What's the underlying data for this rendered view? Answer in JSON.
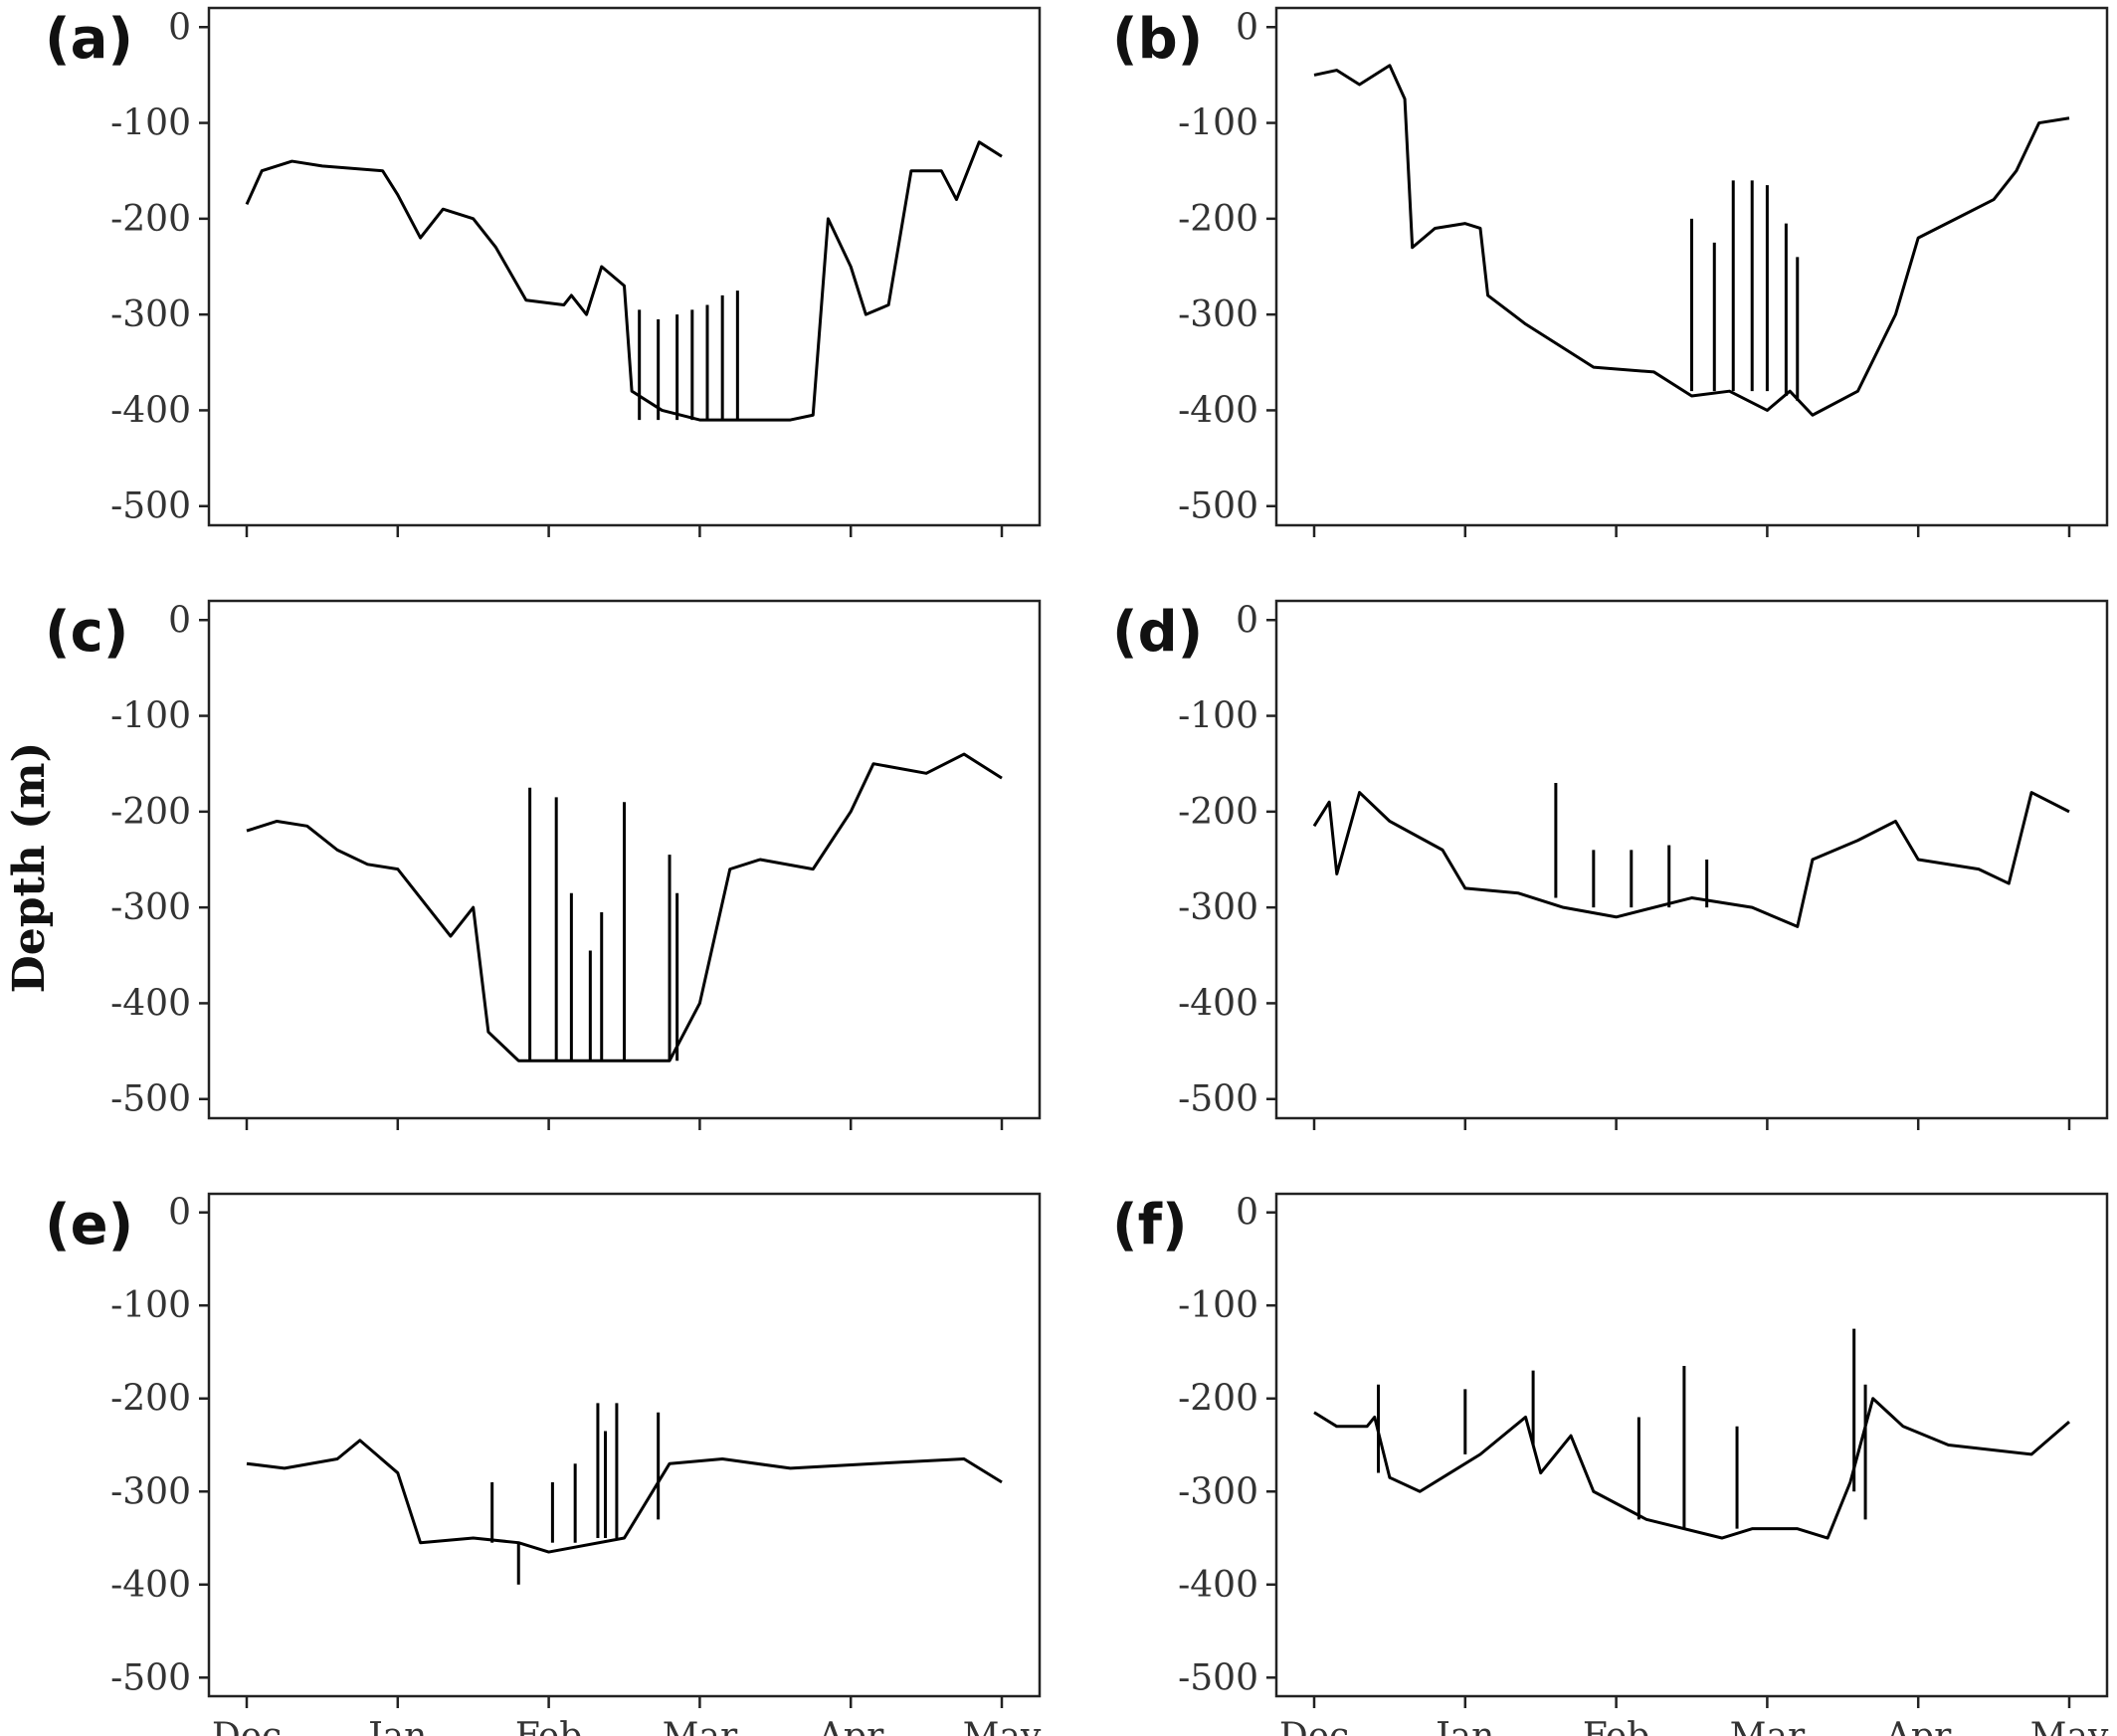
{
  "figure": {
    "y_axis_title": "Depth (m)",
    "line_color": "#000000"
  },
  "chart_data": [
    {
      "panel": "(a)",
      "type": "line",
      "x_ticks": [
        "Dec",
        "Jan",
        "Feb",
        "Mar",
        "Apr",
        "May"
      ],
      "y_ticks": [
        "0",
        "-100",
        "-200",
        "-300",
        "-400",
        "-500"
      ],
      "ylim": [
        -520,
        20
      ],
      "series": [
        {
          "points": [
            [
              "Dec",
              -185
            ],
            [
              "Dec",
              -150
            ],
            [
              "Dec",
              -140
            ],
            [
              "Dec",
              -145
            ],
            [
              "Dec",
              -150
            ],
            [
              "Jan",
              -175
            ],
            [
              "Jan",
              -220
            ],
            [
              "Jan",
              -190
            ],
            [
              "Jan",
              -200
            ],
            [
              "Jan",
              -230
            ],
            [
              "Jan",
              -285
            ],
            [
              "Jan",
              -290
            ],
            [
              "Feb",
              -280
            ],
            [
              "Feb",
              -300
            ],
            [
              "Feb",
              -250
            ],
            [
              "Feb",
              -270
            ],
            [
              "Feb",
              -380
            ],
            [
              "Feb",
              -400
            ],
            [
              "Feb",
              -410
            ],
            [
              "Mar",
              -410
            ],
            [
              "Mar",
              -410
            ],
            [
              "Mar",
              -405
            ],
            [
              "Apr",
              -200
            ],
            [
              "Apr",
              -250
            ],
            [
              "Apr",
              -300
            ],
            [
              "Apr",
              -290
            ],
            [
              "Apr",
              -150
            ],
            [
              "Apr",
              -150
            ],
            [
              "Apr",
              -180
            ],
            [
              "May",
              -120
            ],
            [
              "May",
              -135
            ]
          ],
          "x_fraction": [
            0,
            0.02,
            0.06,
            0.1,
            0.18,
            0.2,
            0.23,
            0.26,
            0.3,
            0.33,
            0.37,
            0.42,
            0.43,
            0.45,
            0.47,
            0.5,
            0.51,
            0.55,
            0.6,
            0.66,
            0.72,
            0.75,
            0.77,
            0.8,
            0.82,
            0.85,
            0.88,
            0.92,
            0.94,
            0.97,
            1.0
          ]
        }
      ],
      "spikes": [
        {
          "x_fraction": 0.52,
          "bottom": -410,
          "top": -295
        },
        {
          "x_fraction": 0.545,
          "bottom": -410,
          "top": -305
        },
        {
          "x_fraction": 0.57,
          "bottom": -410,
          "top": -300
        },
        {
          "x_fraction": 0.59,
          "bottom": -410,
          "top": -295
        },
        {
          "x_fraction": 0.61,
          "bottom": -410,
          "top": -290
        },
        {
          "x_fraction": 0.63,
          "bottom": -410,
          "top": -280
        },
        {
          "x_fraction": 0.65,
          "bottom": -410,
          "top": -275
        }
      ]
    },
    {
      "panel": "(b)",
      "type": "line",
      "x_ticks": [
        "Dec",
        "Jan",
        "Feb",
        "Mar",
        "Apr",
        "May"
      ],
      "y_ticks": [
        "0",
        "-100",
        "-200",
        "-300",
        "-400",
        "-500"
      ],
      "ylim": [
        -520,
        20
      ],
      "series": [
        {
          "points": [
            [
              "Dec",
              -50
            ],
            [
              "Dec",
              -45
            ],
            [
              "Dec",
              -60
            ],
            [
              "Dec",
              -40
            ],
            [
              "Dec",
              -75
            ],
            [
              "Jan",
              -230
            ],
            [
              "Jan",
              -210
            ],
            [
              "Jan",
              -205
            ],
            [
              "Jan",
              -210
            ],
            [
              "Jan",
              -280
            ],
            [
              "Jan",
              -310
            ],
            [
              "Jan",
              -340
            ],
            [
              "Feb",
              -355
            ],
            [
              "Feb",
              -360
            ],
            [
              "Feb",
              -385
            ],
            [
              "Feb",
              -380
            ],
            [
              "Mar",
              -400
            ],
            [
              "Mar",
              -380
            ],
            [
              "Mar",
              -405
            ],
            [
              "Mar",
              -380
            ],
            [
              "Apr",
              -300
            ],
            [
              "Apr",
              -220
            ],
            [
              "Apr",
              -200
            ],
            [
              "Apr",
              -180
            ],
            [
              "Apr",
              -150
            ],
            [
              "May",
              -100
            ],
            [
              "May",
              -95
            ]
          ],
          "x_fraction": [
            0,
            0.03,
            0.06,
            0.1,
            0.12,
            0.13,
            0.16,
            0.2,
            0.22,
            0.23,
            0.28,
            0.34,
            0.37,
            0.45,
            0.5,
            0.55,
            0.6,
            0.63,
            0.66,
            0.72,
            0.77,
            0.8,
            0.85,
            0.9,
            0.93,
            0.96,
            1.0
          ]
        }
      ],
      "spikes": [
        {
          "x_fraction": 0.5,
          "bottom": -380,
          "top": -200
        },
        {
          "x_fraction": 0.53,
          "bottom": -380,
          "top": -225
        },
        {
          "x_fraction": 0.555,
          "bottom": -380,
          "top": -160
        },
        {
          "x_fraction": 0.58,
          "bottom": -380,
          "top": -160
        },
        {
          "x_fraction": 0.6,
          "bottom": -380,
          "top": -165
        },
        {
          "x_fraction": 0.625,
          "bottom": -385,
          "top": -205
        },
        {
          "x_fraction": 0.64,
          "bottom": -390,
          "top": -240
        }
      ]
    },
    {
      "panel": "(c)",
      "type": "line",
      "x_ticks": [
        "Dec",
        "Jan",
        "Feb",
        "Mar",
        "Apr",
        "May"
      ],
      "y_ticks": [
        "0",
        "-100",
        "-200",
        "-300",
        "-400",
        "-500"
      ],
      "ylim": [
        -520,
        20
      ],
      "series": [
        {
          "points": [
            [
              "Dec",
              -220
            ],
            [
              "Dec",
              -210
            ],
            [
              "Dec",
              -215
            ],
            [
              "Dec",
              -240
            ],
            [
              "Dec",
              -255
            ],
            [
              "Jan",
              -260
            ],
            [
              "Jan",
              -300
            ],
            [
              "Jan",
              -330
            ],
            [
              "Jan",
              -300
            ],
            [
              "Jan",
              -430
            ],
            [
              "Feb",
              -460
            ],
            [
              "Feb",
              -460
            ],
            [
              "Mar",
              -460
            ],
            [
              "Mar",
              -400
            ],
            [
              "Mar",
              -260
            ],
            [
              "Mar",
              -250
            ],
            [
              "Apr",
              -260
            ],
            [
              "Apr",
              -200
            ],
            [
              "Apr",
              -150
            ],
            [
              "Apr",
              -160
            ],
            [
              "May",
              -140
            ],
            [
              "May",
              -165
            ]
          ],
          "x_fraction": [
            0,
            0.04,
            0.08,
            0.12,
            0.16,
            0.2,
            0.24,
            0.27,
            0.3,
            0.32,
            0.36,
            0.45,
            0.56,
            0.6,
            0.64,
            0.68,
            0.75,
            0.8,
            0.83,
            0.9,
            0.95,
            1.0
          ]
        }
      ],
      "spikes": [
        {
          "x_fraction": 0.375,
          "bottom": -460,
          "top": -175
        },
        {
          "x_fraction": 0.41,
          "bottom": -460,
          "top": -185
        },
        {
          "x_fraction": 0.43,
          "bottom": -460,
          "top": -285
        },
        {
          "x_fraction": 0.455,
          "bottom": -460,
          "top": -345
        },
        {
          "x_fraction": 0.47,
          "bottom": -460,
          "top": -305
        },
        {
          "x_fraction": 0.5,
          "bottom": -460,
          "top": -190
        },
        {
          "x_fraction": 0.56,
          "bottom": -460,
          "top": -245
        },
        {
          "x_fraction": 0.57,
          "bottom": -460,
          "top": -285
        }
      ]
    },
    {
      "panel": "(d)",
      "type": "line",
      "x_ticks": [
        "Dec",
        "Jan",
        "Feb",
        "Mar",
        "Apr",
        "May"
      ],
      "y_ticks": [
        "0",
        "-100",
        "-200",
        "-300",
        "-400",
        "-500"
      ],
      "ylim": [
        -520,
        20
      ],
      "series": [
        {
          "points": [
            [
              "Dec",
              -215
            ],
            [
              "Dec",
              -190
            ],
            [
              "Dec",
              -265
            ],
            [
              "Dec",
              -180
            ],
            [
              "Dec",
              -210
            ],
            [
              "Jan",
              -240
            ],
            [
              "Jan",
              -280
            ],
            [
              "Jan",
              -285
            ],
            [
              "Feb",
              -300
            ],
            [
              "Feb",
              -310
            ],
            [
              "Feb",
              -290
            ],
            [
              "Mar",
              -300
            ],
            [
              "Mar",
              -320
            ],
            [
              "Mar",
              -250
            ],
            [
              "Apr",
              -230
            ],
            [
              "Apr",
              -210
            ],
            [
              "Apr",
              -250
            ],
            [
              "Apr",
              -260
            ],
            [
              "May",
              -275
            ],
            [
              "May",
              -180
            ],
            [
              "May",
              -200
            ]
          ],
          "x_fraction": [
            0,
            0.02,
            0.03,
            0.06,
            0.1,
            0.17,
            0.2,
            0.27,
            0.33,
            0.4,
            0.5,
            0.58,
            0.64,
            0.66,
            0.72,
            0.77,
            0.8,
            0.88,
            0.92,
            0.95,
            1.0
          ]
        }
      ],
      "spikes": [
        {
          "x_fraction": 0.32,
          "bottom": -290,
          "top": -170
        },
        {
          "x_fraction": 0.37,
          "bottom": -300,
          "top": -240
        },
        {
          "x_fraction": 0.42,
          "bottom": -300,
          "top": -240
        },
        {
          "x_fraction": 0.47,
          "bottom": -300,
          "top": -235
        },
        {
          "x_fraction": 0.52,
          "bottom": -300,
          "top": -250
        }
      ]
    },
    {
      "panel": "(e)",
      "type": "line",
      "x_ticks": [
        "Dec",
        "Jan",
        "Feb",
        "Mar",
        "Apr",
        "May"
      ],
      "y_ticks": [
        "0",
        "-100",
        "-200",
        "-300",
        "-400",
        "-500"
      ],
      "ylim": [
        -520,
        20
      ],
      "series": [
        {
          "points": [
            [
              "Dec",
              -270
            ],
            [
              "Dec",
              -275
            ],
            [
              "Dec",
              -265
            ],
            [
              "Dec",
              -245
            ],
            [
              "Jan",
              -280
            ],
            [
              "Jan",
              -355
            ],
            [
              "Jan",
              -350
            ],
            [
              "Feb",
              -355
            ],
            [
              "Feb",
              -365
            ],
            [
              "Feb",
              -350
            ],
            [
              "Mar",
              -270
            ],
            [
              "Mar",
              -265
            ],
            [
              "Apr",
              -275
            ],
            [
              "Apr",
              -270
            ],
            [
              "May",
              -265
            ],
            [
              "May",
              -290
            ]
          ],
          "x_fraction": [
            0,
            0.05,
            0.12,
            0.15,
            0.2,
            0.23,
            0.3,
            0.36,
            0.4,
            0.5,
            0.56,
            0.63,
            0.72,
            0.83,
            0.95,
            1.0
          ]
        }
      ],
      "spikes": [
        {
          "x_fraction": 0.325,
          "bottom": -355,
          "top": -290
        },
        {
          "x_fraction": 0.36,
          "bottom": -355,
          "top": -400
        },
        {
          "x_fraction": 0.405,
          "bottom": -355,
          "top": -290
        },
        {
          "x_fraction": 0.435,
          "bottom": -355,
          "top": -270
        },
        {
          "x_fraction": 0.465,
          "bottom": -350,
          "top": -205
        },
        {
          "x_fraction": 0.475,
          "bottom": -350,
          "top": -235
        },
        {
          "x_fraction": 0.49,
          "bottom": -350,
          "top": -205
        },
        {
          "x_fraction": 0.545,
          "bottom": -330,
          "top": -215
        }
      ]
    },
    {
      "panel": "(f)",
      "type": "line",
      "x_ticks": [
        "Dec",
        "Jan",
        "Feb",
        "Mar",
        "Apr",
        "May"
      ],
      "y_ticks": [
        "0",
        "-100",
        "-200",
        "-300",
        "-400",
        "-500"
      ],
      "ylim": [
        -520,
        20
      ],
      "series": [
        {
          "points": [
            [
              "Dec",
              -215
            ],
            [
              "Dec",
              -230
            ],
            [
              "Dec",
              -230
            ],
            [
              "Dec",
              -220
            ],
            [
              "Jan",
              -285
            ],
            [
              "Jan",
              -300
            ],
            [
              "Jan",
              -280
            ],
            [
              "Jan",
              -260
            ],
            [
              "Jan",
              -220
            ],
            [
              "Jan",
              -280
            ],
            [
              "Jan",
              -240
            ],
            [
              "Feb",
              -300
            ],
            [
              "Feb",
              -330
            ],
            [
              "Feb",
              -350
            ],
            [
              "Mar",
              -340
            ],
            [
              "Mar",
              -340
            ],
            [
              "Mar",
              -350
            ],
            [
              "Apr",
              -290
            ],
            [
              "Apr",
              -200
            ],
            [
              "Apr",
              -230
            ],
            [
              "Apr",
              -250
            ],
            [
              "May",
              -260
            ],
            [
              "May",
              -225
            ]
          ],
          "x_fraction": [
            0,
            0.03,
            0.07,
            0.08,
            0.1,
            0.14,
            0.18,
            0.22,
            0.28,
            0.3,
            0.34,
            0.37,
            0.44,
            0.54,
            0.58,
            0.64,
            0.68,
            0.71,
            0.74,
            0.78,
            0.84,
            0.95,
            1.0
          ]
        }
      ],
      "spikes": [
        {
          "x_fraction": 0.085,
          "bottom": -280,
          "top": -185
        },
        {
          "x_fraction": 0.2,
          "bottom": -260,
          "top": -190
        },
        {
          "x_fraction": 0.29,
          "bottom": -250,
          "top": -170
        },
        {
          "x_fraction": 0.43,
          "bottom": -330,
          "top": -220
        },
        {
          "x_fraction": 0.49,
          "bottom": -340,
          "top": -165
        },
        {
          "x_fraction": 0.56,
          "bottom": -340,
          "top": -230
        },
        {
          "x_fraction": 0.715,
          "bottom": -300,
          "top": -125
        },
        {
          "x_fraction": 0.73,
          "bottom": -330,
          "top": -185
        }
      ]
    }
  ]
}
